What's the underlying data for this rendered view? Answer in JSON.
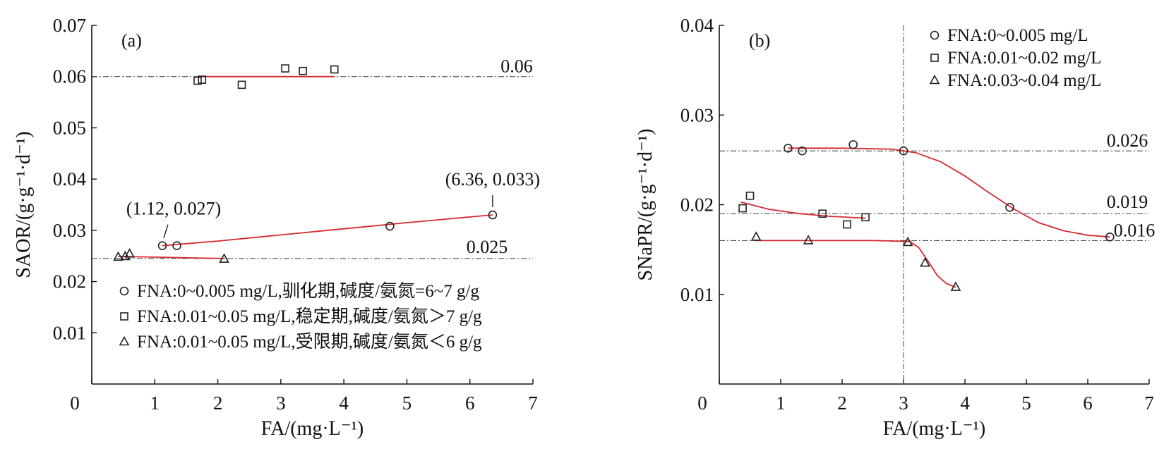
{
  "chart_data": [
    {
      "type": "scatter",
      "panel_label": "(a)",
      "xlabel": "FA/(mg·L⁻¹)",
      "ylabel": "SAOR/(g·g⁻¹·d⁻¹)",
      "xlim": [
        0,
        7
      ],
      "ylim": [
        0,
        0.07
      ],
      "xticks": [
        0,
        1,
        2,
        3,
        4,
        5,
        6,
        7
      ],
      "yticks": [
        0.01,
        0.02,
        0.03,
        0.04,
        0.05,
        0.06,
        0.07
      ],
      "xtick_labels": [
        "0",
        "1",
        "2",
        "3",
        "4",
        "5",
        "6",
        "7"
      ],
      "ytick_labels": [
        "0.01",
        "0.02",
        "0.03",
        "0.04",
        "0.05",
        "0.06",
        "0.07"
      ],
      "grid": false,
      "legend_position": "lower-left",
      "series": [
        {
          "name": "FNA:0~0.005 mg/L,驯化期,碱度/氨氮=6~7 g/g",
          "marker": "circle",
          "x": [
            1.12,
            1.35,
            4.73,
            6.36
          ],
          "y": [
            0.027,
            0.027,
            0.0308,
            0.033
          ]
        },
        {
          "name": "FNA:0.01~0.05 mg/L,稳定期,碱度/氨氮＞7 g/g",
          "marker": "square",
          "x": [
            1.68,
            1.75,
            2.38,
            3.07,
            3.35,
            3.85
          ],
          "y": [
            0.0592,
            0.0594,
            0.0584,
            0.0616,
            0.0611,
            0.0614
          ]
        },
        {
          "name": "FNA:0.01~0.05 mg/L,受限期,碱度/氨氮＜6 g/g",
          "marker": "triangle",
          "x": [
            0.42,
            0.53,
            0.6,
            2.1
          ],
          "y": [
            0.0248,
            0.0249,
            0.0254,
            0.0244
          ]
        }
      ],
      "fit_lines": [
        {
          "x": [
            1.12,
            2,
            3,
            4,
            5,
            6.36
          ],
          "y": [
            0.027,
            0.0279,
            0.0291,
            0.0303,
            0.0315,
            0.033
          ]
        },
        {
          "x": [
            1.68,
            3.85
          ],
          "y": [
            0.06,
            0.06
          ]
        },
        {
          "x": [
            0.42,
            2.1
          ],
          "y": [
            0.0249,
            0.0245
          ]
        }
      ],
      "reference_lines": [
        {
          "y": 0.06,
          "label": "0.06"
        },
        {
          "y": 0.0245,
          "label": "0.025"
        }
      ],
      "annotations": [
        {
          "text": "(1.12, 0.027)",
          "x": 1.12,
          "y": 0.027
        },
        {
          "text": "(6.36, 0.033)",
          "x": 6.36,
          "y": 0.033
        }
      ]
    },
    {
      "type": "scatter",
      "panel_label": "(b)",
      "xlabel": "FA/(mg·L⁻¹)",
      "ylabel": "SNaPR/(g·g⁻¹·d⁻¹)",
      "xlim": [
        0,
        7
      ],
      "ylim": [
        0,
        0.04
      ],
      "xticks": [
        0,
        1,
        2,
        3,
        4,
        5,
        6,
        7
      ],
      "yticks": [
        0.01,
        0.02,
        0.03,
        0.04
      ],
      "xtick_labels": [
        "0",
        "1",
        "2",
        "3",
        "4",
        "5",
        "6",
        "7"
      ],
      "ytick_labels": [
        "0.01",
        "0.02",
        "0.03",
        "0.04"
      ],
      "grid": false,
      "legend_position": "top-right",
      "vertical_reference_x": 3,
      "series": [
        {
          "name": "FNA:0~0.005 mg/L",
          "marker": "circle",
          "x": [
            1.12,
            1.35,
            2.18,
            3.0,
            4.73,
            6.36
          ],
          "y": [
            0.0263,
            0.026,
            0.0267,
            0.026,
            0.0197,
            0.0164
          ]
        },
        {
          "name": "FNA:0.01~0.02 mg/L",
          "marker": "square",
          "x": [
            0.38,
            0.5,
            1.68,
            2.08,
            2.38
          ],
          "y": [
            0.0196,
            0.021,
            0.019,
            0.0178,
            0.0186
          ]
        },
        {
          "name": "FNA:0.03~0.04 mg/L",
          "marker": "triangle",
          "x": [
            0.6,
            1.45,
            3.07,
            3.35,
            3.85
          ],
          "y": [
            0.0164,
            0.016,
            0.0158,
            0.0135,
            0.0108
          ]
        }
      ],
      "fit_lines": [
        {
          "x": [
            1.12,
            2.0,
            2.8,
            3.2,
            3.6,
            4.0,
            4.4,
            4.8,
            5.2,
            5.6,
            6.0,
            6.36
          ],
          "y": [
            0.0263,
            0.0263,
            0.0262,
            0.0258,
            0.0248,
            0.0232,
            0.0213,
            0.0195,
            0.018,
            0.0171,
            0.0166,
            0.0164
          ]
        },
        {
          "x": [
            0.35,
            0.8,
            1.3,
            1.8,
            2.38
          ],
          "y": [
            0.0203,
            0.0195,
            0.019,
            0.0187,
            0.0185
          ]
        },
        {
          "x": [
            0.6,
            1.5,
            2.5,
            3.1,
            3.25,
            3.4,
            3.55,
            3.7,
            3.85
          ],
          "y": [
            0.016,
            0.016,
            0.016,
            0.0159,
            0.0152,
            0.0137,
            0.0121,
            0.0112,
            0.0108
          ]
        }
      ],
      "reference_lines": [
        {
          "y": 0.026,
          "label": "0.026"
        },
        {
          "y": 0.019,
          "label": "0.019"
        },
        {
          "y": 0.016,
          "label": "0.016"
        }
      ]
    }
  ]
}
